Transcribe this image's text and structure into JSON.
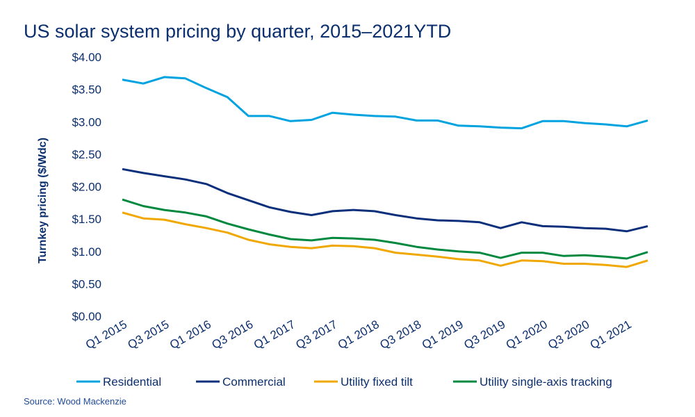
{
  "chart_data": {
    "type": "line",
    "title": "US solar system pricing by quarter, 2015–2021YTD",
    "ylabel": "Turnkey pricing ($/Wdc)",
    "xlabel": "",
    "ylim": [
      0,
      4
    ],
    "yticks": [
      "$0.00",
      "$0.50",
      "$1.00",
      "$1.50",
      "$2.00",
      "$2.50",
      "$3.00",
      "$3.50",
      "$4.00"
    ],
    "ytick_values": [
      0,
      0.5,
      1,
      1.5,
      2,
      2.5,
      3,
      3.5,
      4
    ],
    "grid": false,
    "legend_position": "bottom",
    "categories": [
      "Q1 2015",
      "Q2 2015",
      "Q3 2015",
      "Q4 2015",
      "Q1 2016",
      "Q2 2016",
      "Q3 2016",
      "Q4 2016",
      "Q1 2017",
      "Q2 2017",
      "Q3 2017",
      "Q4 2017",
      "Q1 2018",
      "Q2 2018",
      "Q3 2018",
      "Q4 2018",
      "Q1 2019",
      "Q2 2019",
      "Q3 2019",
      "Q4 2019",
      "Q1 2020",
      "Q2 2020",
      "Q3 2020",
      "Q4 2020",
      "Q1 2021",
      "Q2 2021"
    ],
    "xtick_labels": [
      "Q1 2015",
      "Q3 2015",
      "Q1 2016",
      "Q3 2016",
      "Q1 2017",
      "Q3 2017",
      "Q1 2018",
      "Q3 2018",
      "Q1 2019",
      "Q3 2019",
      "Q1 2020",
      "Q3 2020",
      "Q1 2021"
    ],
    "series": [
      {
        "name": "Residential",
        "color": "#00a3e0",
        "values": [
          3.65,
          3.59,
          3.69,
          3.67,
          3.52,
          3.38,
          3.09,
          3.09,
          3.01,
          3.03,
          3.14,
          3.11,
          3.09,
          3.08,
          3.02,
          3.02,
          2.94,
          2.93,
          2.91,
          2.9,
          3.01,
          3.01,
          2.98,
          2.96,
          2.93,
          3.02
        ]
      },
      {
        "name": "Commercial",
        "color": "#0b2f7a",
        "values": [
          2.27,
          2.21,
          2.16,
          2.11,
          2.04,
          1.9,
          1.79,
          1.68,
          1.61,
          1.56,
          1.62,
          1.64,
          1.62,
          1.56,
          1.51,
          1.48,
          1.47,
          1.45,
          1.36,
          1.45,
          1.39,
          1.38,
          1.36,
          1.35,
          1.31,
          1.39
        ]
      },
      {
        "name": "Utility fixed tilt",
        "color": "#f0a800",
        "values": [
          1.6,
          1.51,
          1.49,
          1.42,
          1.36,
          1.29,
          1.18,
          1.11,
          1.07,
          1.05,
          1.09,
          1.08,
          1.05,
          0.98,
          0.95,
          0.92,
          0.88,
          0.86,
          0.78,
          0.86,
          0.85,
          0.81,
          0.81,
          0.79,
          0.76,
          0.86
        ]
      },
      {
        "name": "Utility single-axis tracking",
        "color": "#00893e",
        "values": [
          1.8,
          1.7,
          1.64,
          1.6,
          1.54,
          1.43,
          1.34,
          1.26,
          1.19,
          1.17,
          1.21,
          1.2,
          1.18,
          1.13,
          1.07,
          1.03,
          1.0,
          0.98,
          0.9,
          0.98,
          0.98,
          0.93,
          0.94,
          0.92,
          0.89,
          0.99
        ]
      }
    ]
  },
  "source": "Source: Wood Mackenzie"
}
